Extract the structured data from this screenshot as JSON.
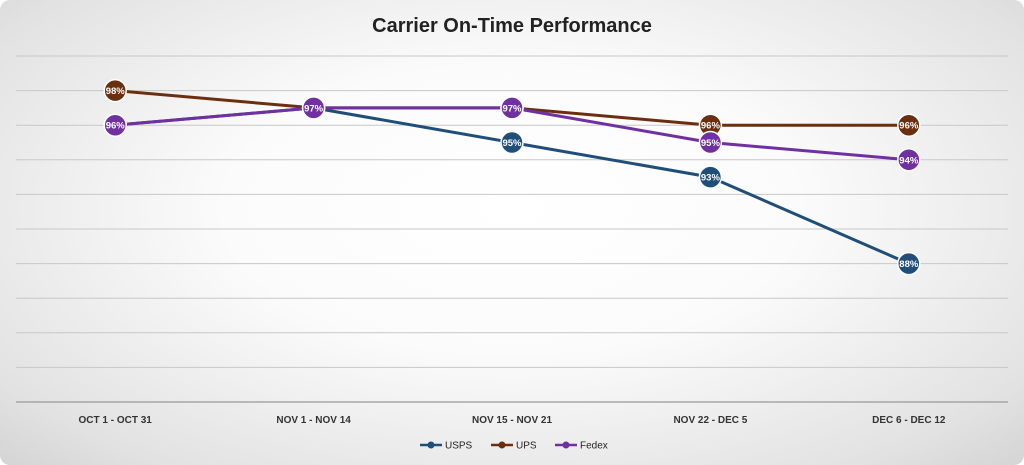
{
  "chart_data": {
    "type": "line",
    "title": "Carrier On-Time Performance",
    "categories": [
      "OCT 1 - OCT 31",
      "NOV 1 - NOV 14",
      "NOV 15 - NOV 21",
      "NOV 22 - DEC 5",
      "DEC 6 - DEC 12"
    ],
    "ylim": [
      80,
      100
    ],
    "y_gridline_step": 2,
    "y_axis_labels_shown": false,
    "grid": true,
    "legend_position": "bottom",
    "series": [
      {
        "name": "USPS",
        "color": "#1f4e79",
        "values": [
          96,
          97,
          95,
          93,
          88
        ],
        "labels": [
          "96%",
          "97%",
          "95%",
          "93%",
          "88%"
        ]
      },
      {
        "name": "UPS",
        "color": "#6b2f10",
        "values": [
          98,
          97,
          97,
          96,
          96
        ],
        "labels": [
          "98%",
          "97%",
          "97%",
          "96%",
          "96%"
        ]
      },
      {
        "name": "Fedex",
        "color": "#7030a0",
        "values": [
          96,
          97,
          97,
          95,
          94
        ],
        "labels": [
          "96%",
          "97%",
          "97%",
          "95%",
          "94%"
        ]
      }
    ]
  }
}
